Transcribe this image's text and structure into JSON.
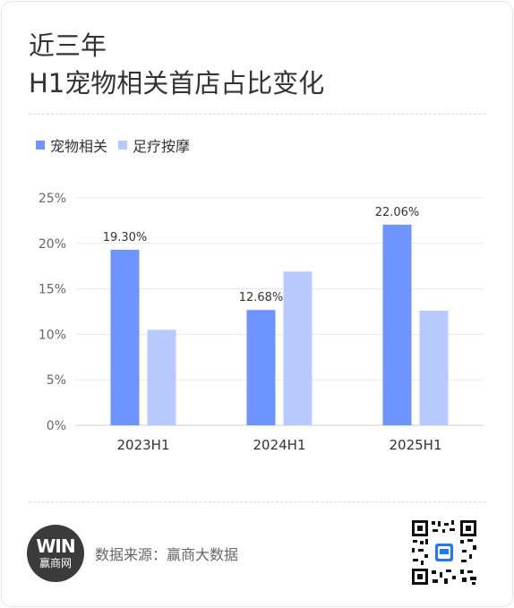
{
  "title": {
    "line1": "近三年",
    "line2": "H1宠物相关首店占比变化"
  },
  "legend": [
    {
      "label": "宠物相关",
      "color": "#6e95ff"
    },
    {
      "label": "足疗按摩",
      "color": "#b7c9ff"
    }
  ],
  "chart_data": {
    "type": "bar",
    "categories": [
      "2023H1",
      "2024H1",
      "2025H1"
    ],
    "series": [
      {
        "name": "宠物相关",
        "values": [
          19.3,
          12.68,
          22.06
        ],
        "color": "#6e95ff",
        "labels": [
          "19.30%",
          "12.68%",
          "22.06%"
        ]
      },
      {
        "name": "足疗按摩",
        "values": [
          10.5,
          16.9,
          12.6
        ],
        "color": "#b7c9ff"
      }
    ],
    "yticks": [
      "0%",
      "5%",
      "10%",
      "15%",
      "20%",
      "25%"
    ],
    "ylim": [
      0,
      25
    ],
    "grid": true,
    "legend_position": "top-left"
  },
  "footer": {
    "logo_mark": "WIN",
    "logo_name": "赢商网",
    "source": "数据来源：赢商大数据"
  }
}
